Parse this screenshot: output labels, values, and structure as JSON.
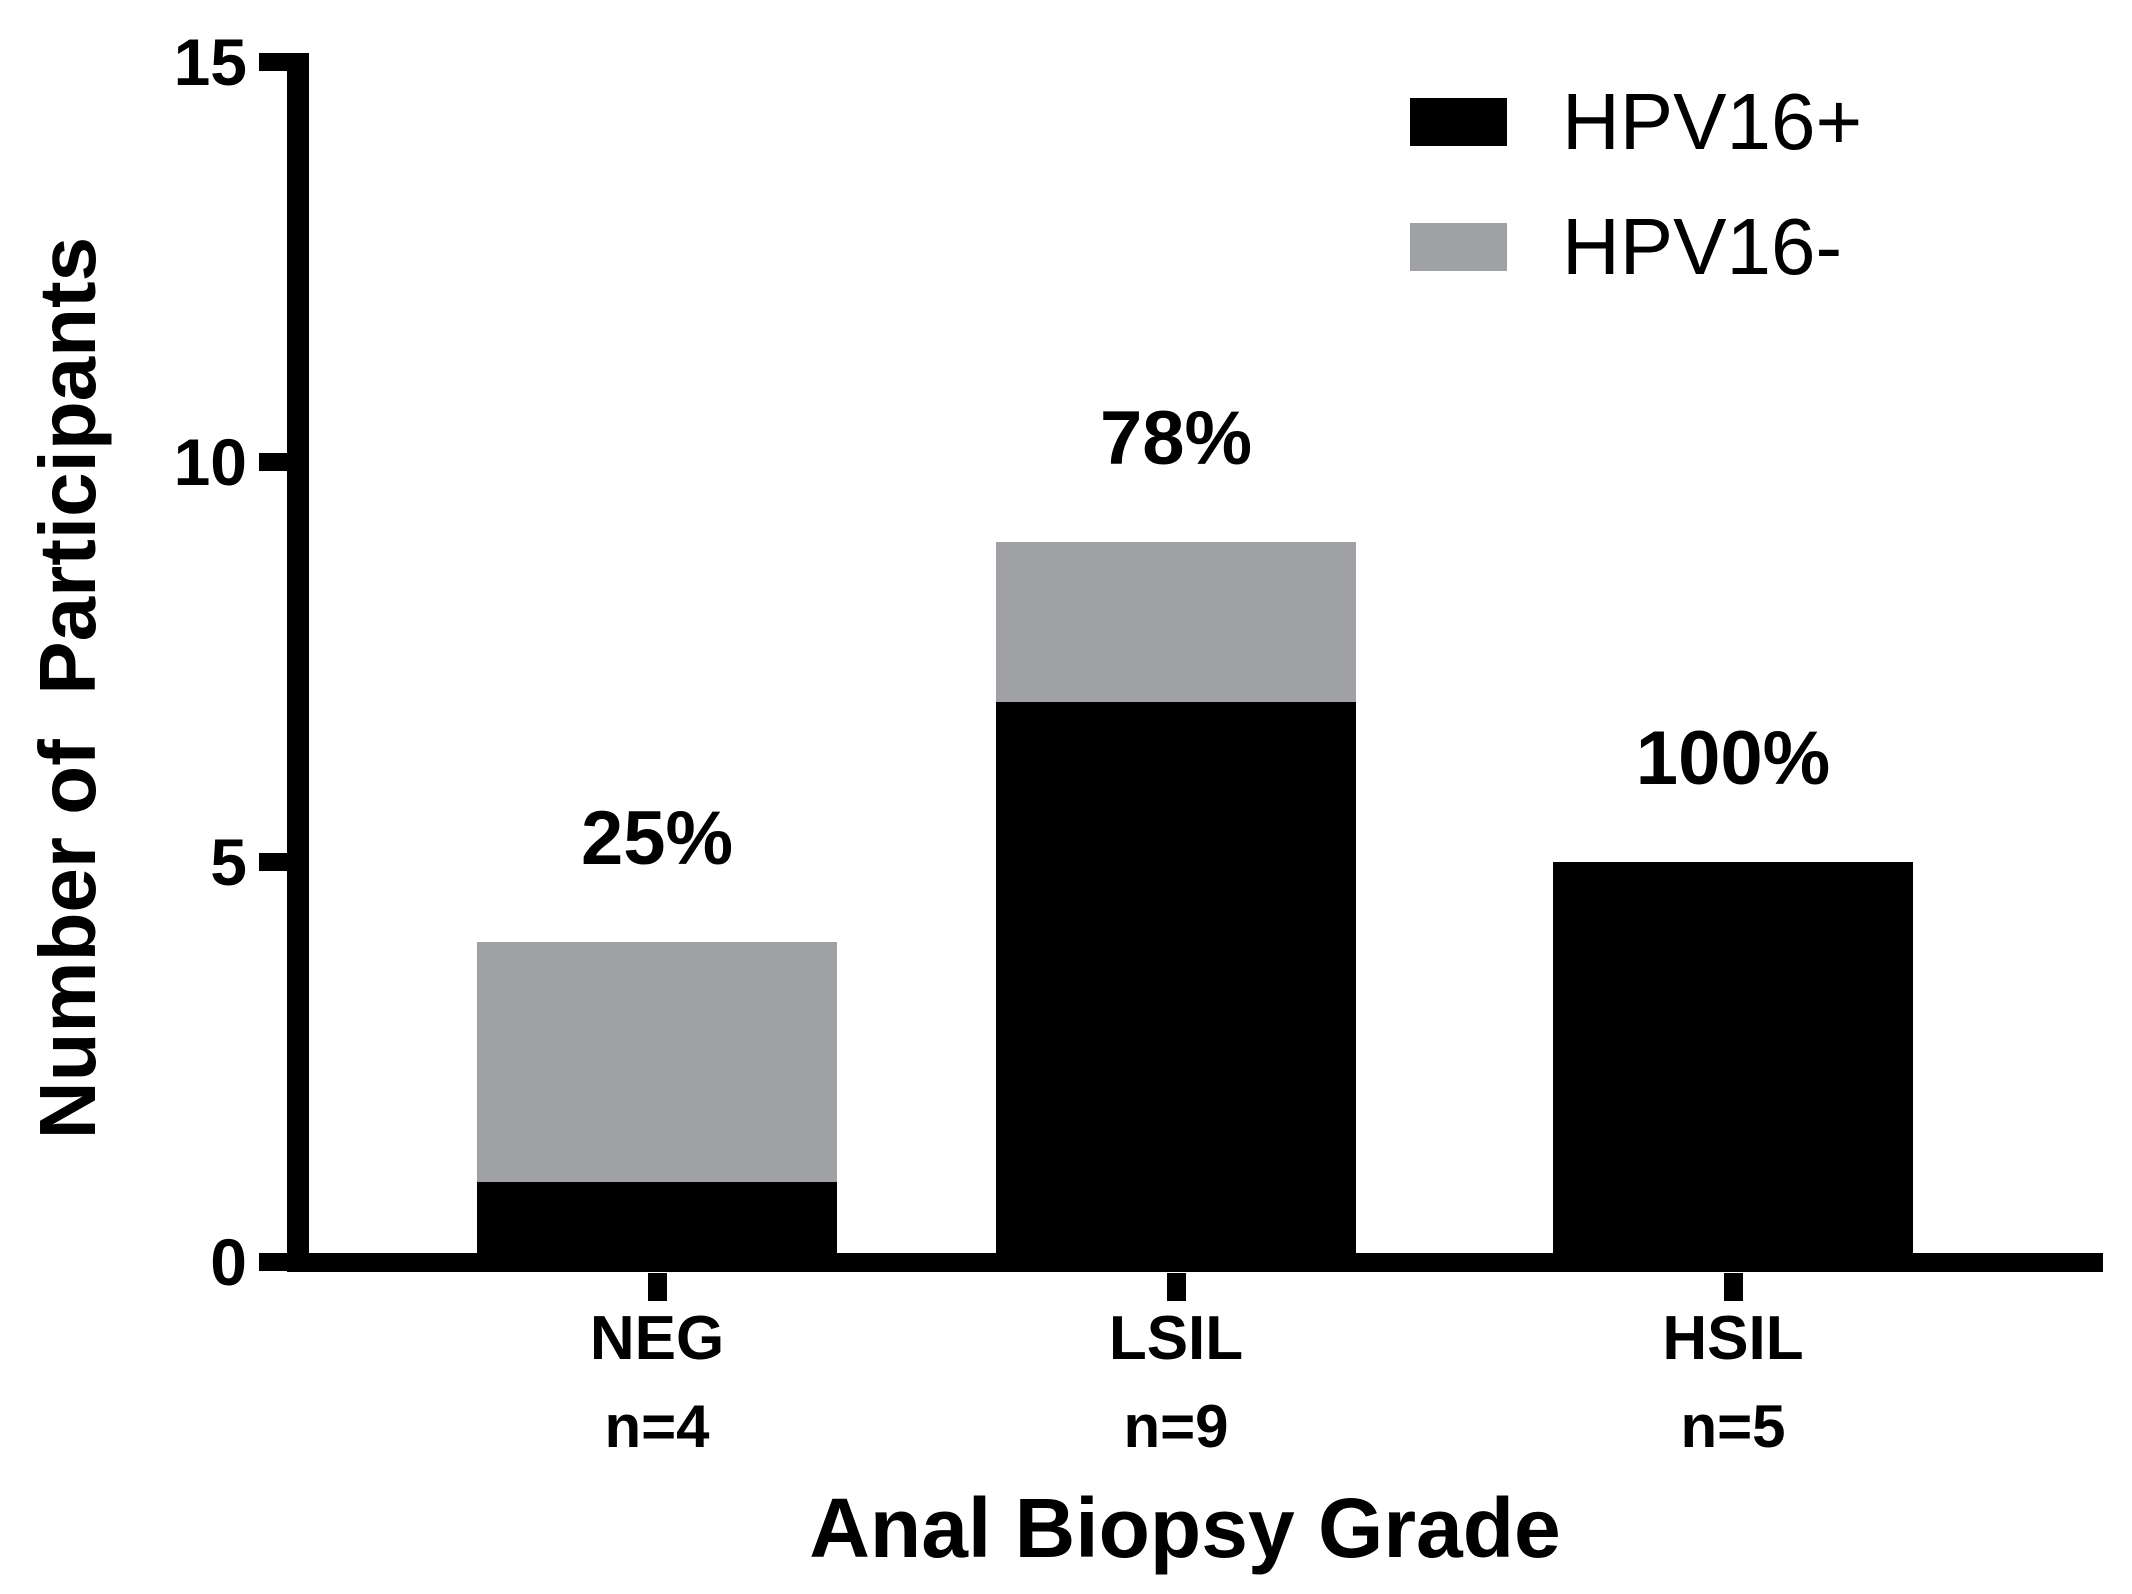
{
  "chart_data": {
    "type": "bar",
    "stacked": true,
    "title": "",
    "xlabel": "Anal Biopsy Grade",
    "ylabel": "Number of  Participants",
    "categories": [
      "NEG",
      "LSIL",
      "HSIL"
    ],
    "category_counts": [
      "n=4",
      "n=9",
      "n=5"
    ],
    "series": [
      {
        "name": "HPV16+",
        "color": "#000000",
        "values": [
          1,
          7,
          5
        ]
      },
      {
        "name": "HPV16-",
        "color": "#a0a1a5",
        "values": [
          3,
          2,
          0
        ]
      }
    ],
    "bar_labels": [
      "25%",
      "78%",
      "100%"
    ],
    "ylim": [
      0,
      15
    ],
    "yticks": [
      0,
      5,
      10,
      15
    ],
    "grid": false,
    "legend_position": "top-right",
    "axis_color": "#000000",
    "background": "#ffffff"
  }
}
